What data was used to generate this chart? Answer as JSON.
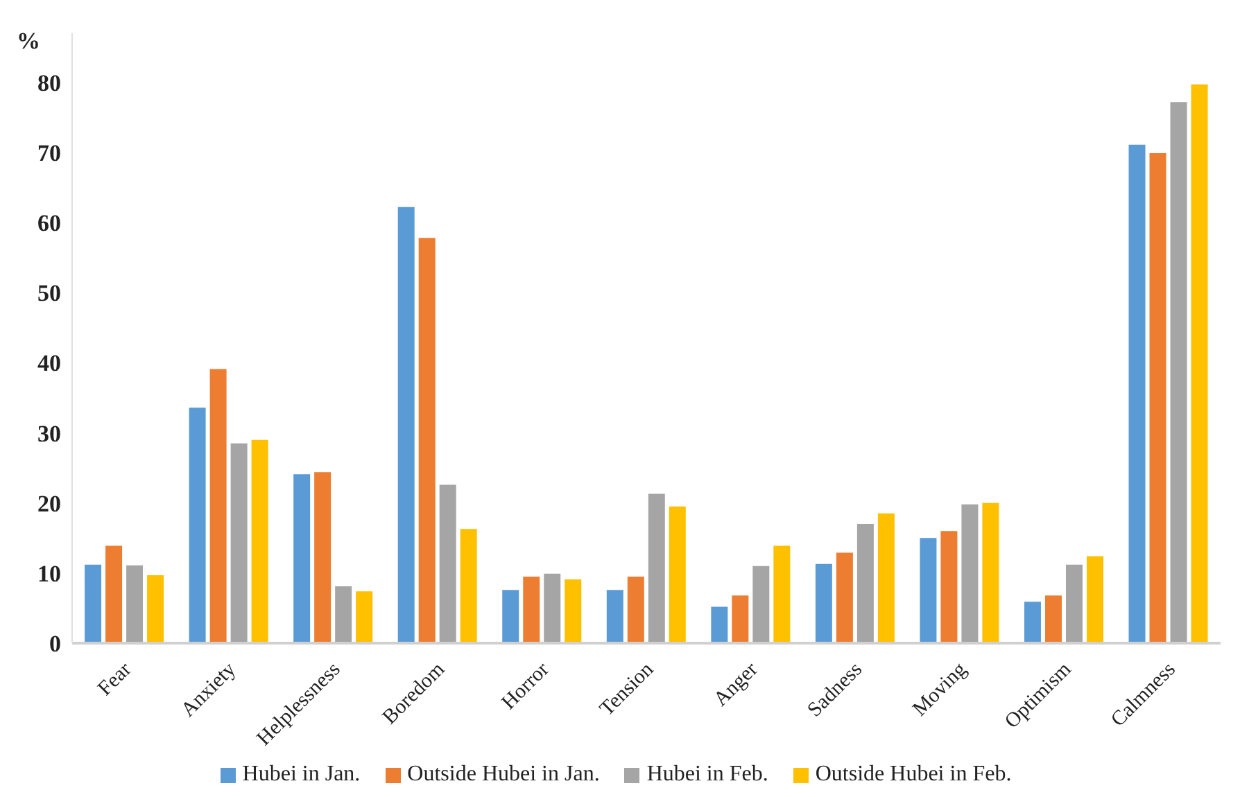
{
  "chart_data": {
    "type": "bar",
    "ylabel": "%",
    "categories": [
      "Fear",
      "Anxiety",
      "Helplessness",
      "Boredom",
      "Horror",
      "Tension",
      "Anger",
      "Sadness",
      "Moving",
      "Optimism",
      "Calmness"
    ],
    "series": [
      {
        "name": "Hubei in Jan.",
        "color": "#5b9bd5",
        "values": [
          11.2,
          33.6,
          24.1,
          62.2,
          7.6,
          7.6,
          5.2,
          11.3,
          15.0,
          5.9,
          71.1
        ]
      },
      {
        "name": "Outside Hubei in Jan.",
        "color": "#ed7d31",
        "values": [
          13.9,
          39.1,
          24.4,
          57.8,
          9.5,
          9.5,
          6.8,
          12.9,
          16.0,
          6.8,
          69.9
        ]
      },
      {
        "name": "Hubei in Feb.",
        "color": "#a5a5a5",
        "values": [
          11.1,
          28.5,
          8.1,
          22.6,
          9.9,
          21.3,
          11.0,
          17.0,
          19.8,
          11.2,
          77.2
        ]
      },
      {
        "name": "Outside Hubei in Feb.",
        "color": "#ffc000",
        "values": [
          9.7,
          29.0,
          7.4,
          16.3,
          9.1,
          19.5,
          13.9,
          18.5,
          20.0,
          12.4,
          79.7
        ]
      }
    ],
    "ylim": [
      0,
      87
    ],
    "yticks": [
      0,
      10,
      20,
      30,
      40,
      50,
      60,
      70,
      80
    ],
    "grid": false,
    "legend": "bottom"
  }
}
